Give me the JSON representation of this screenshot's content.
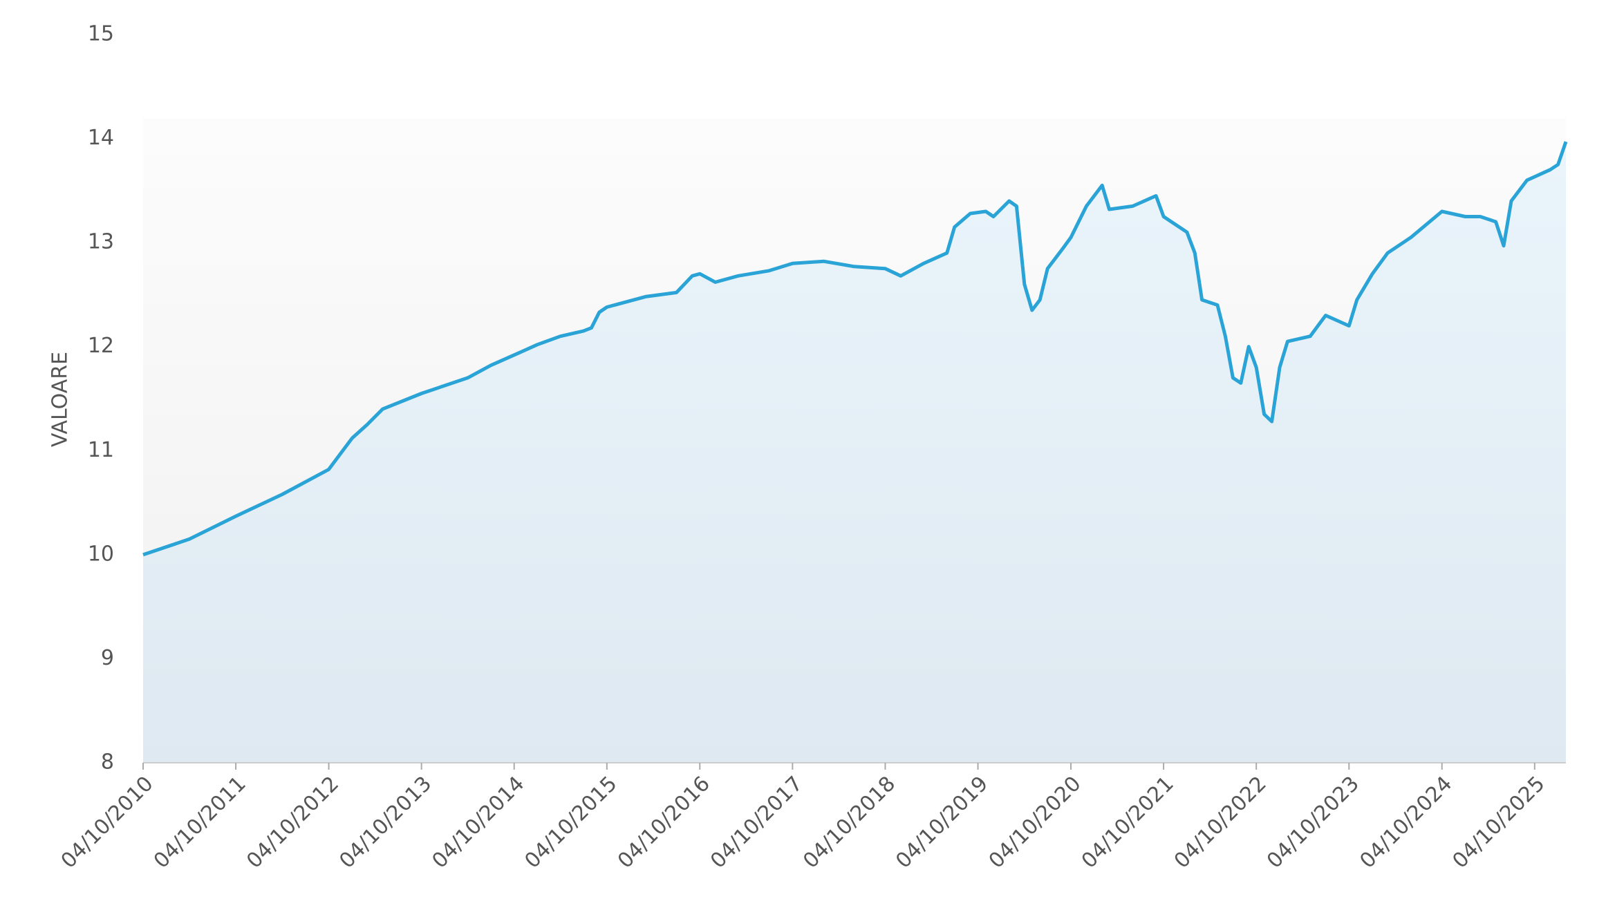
{
  "chart_data": {
    "type": "area",
    "y_label": "VALOARE",
    "x": [
      "04/10/2010",
      "04/04/2011",
      "04/10/2011",
      "04/04/2012",
      "04/10/2012",
      "04/01/2013",
      "04/03/2013",
      "04/05/2013",
      "04/10/2013",
      "04/04/2014",
      "04/07/2014",
      "04/10/2014",
      "04/01/2015",
      "04/04/2015",
      "04/07/2015",
      "04/08/2015",
      "04/09/2015",
      "04/10/2015",
      "04/03/2016",
      "04/07/2016",
      "04/09/2016",
      "04/10/2016",
      "04/12/2016",
      "04/03/2017",
      "04/07/2017",
      "04/10/2017",
      "04/02/2018",
      "04/06/2018",
      "04/10/2018",
      "04/12/2018",
      "04/03/2019",
      "04/06/2019",
      "04/07/2019",
      "04/09/2019",
      "04/11/2019",
      "04/12/2019",
      "04/02/2020",
      "04/03/2020",
      "04/04/2020",
      "04/05/2020",
      "04/06/2020",
      "04/07/2020",
      "04/09/2020",
      "04/10/2020",
      "04/12/2020",
      "04/02/2021",
      "04/03/2021",
      "04/06/2021",
      "04/09/2021",
      "04/10/2021",
      "04/01/2022",
      "04/02/2022",
      "04/03/2022",
      "04/05/2022",
      "04/06/2022",
      "04/07/2022",
      "04/08/2022",
      "04/09/2022",
      "04/10/2022",
      "04/11/2022",
      "04/12/2022",
      "04/01/2023",
      "04/02/2023",
      "04/05/2023",
      "04/07/2023",
      "04/10/2023",
      "04/11/2023",
      "04/01/2024",
      "04/03/2024",
      "04/06/2024",
      "04/10/2024",
      "04/01/2025",
      "04/03/2025",
      "04/05/2025",
      "04/06/2025",
      "04/07/2025",
      "04/09/2025",
      "04/12/2025",
      "04/01/2026",
      "04/02/2026"
    ],
    "series": [
      {
        "color": "#2aa3d6",
        "values": [
          10.0,
          10.15,
          10.37,
          10.58,
          10.82,
          11.12,
          11.25,
          11.4,
          11.55,
          11.7,
          11.82,
          11.92,
          12.02,
          12.1,
          12.15,
          12.18,
          12.33,
          12.38,
          12.48,
          12.52,
          12.68,
          12.7,
          12.62,
          12.68,
          12.73,
          12.8,
          12.82,
          12.77,
          12.75,
          12.68,
          12.8,
          12.9,
          13.15,
          13.28,
          13.3,
          13.25,
          13.4,
          13.35,
          12.6,
          12.35,
          12.45,
          12.75,
          12.95,
          13.05,
          13.35,
          13.55,
          13.32,
          13.35,
          13.45,
          13.25,
          13.1,
          12.9,
          12.45,
          12.4,
          12.1,
          11.7,
          11.65,
          12.0,
          11.8,
          11.35,
          11.28,
          11.8,
          12.05,
          12.1,
          12.3,
          12.2,
          12.45,
          12.7,
          12.9,
          13.05,
          13.3,
          13.25,
          13.25,
          13.2,
          12.97,
          13.4,
          13.6,
          13.7,
          13.75,
          13.97
        ]
      }
    ],
    "xlim": [
      "04/10/2010",
      "04/02/2026"
    ],
    "xticks": [
      "04/10/2010",
      "04/10/2011",
      "04/10/2012",
      "04/10/2013",
      "04/10/2014",
      "04/10/2015",
      "04/10/2016",
      "04/10/2017",
      "04/10/2018",
      "04/10/2019",
      "04/10/2020",
      "04/10/2021",
      "04/10/2022",
      "04/10/2023",
      "04/10/2024",
      "04/10/2025"
    ],
    "ylim": [
      8,
      15
    ],
    "yticks": [
      8,
      9,
      10,
      11,
      12,
      13,
      14,
      15
    ]
  }
}
